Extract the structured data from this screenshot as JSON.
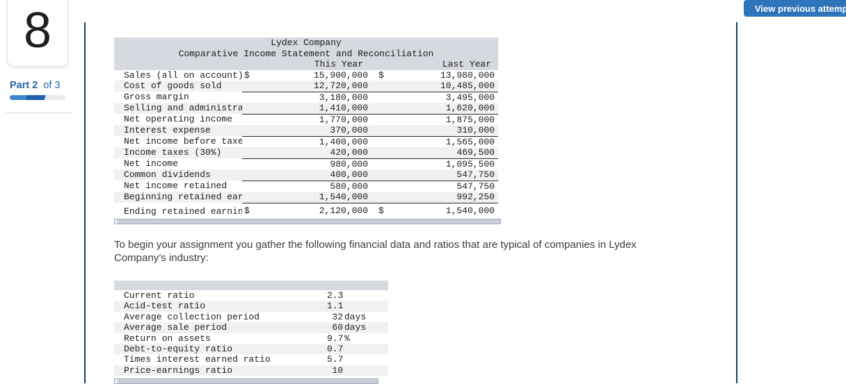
{
  "question": {
    "number": "8"
  },
  "part": {
    "bold": "Part 2",
    "rest": "of 3",
    "progress_percent": 66
  },
  "toolbar": {
    "view_previous_label": "View previous attempt"
  },
  "colors": {
    "accent_blue": "#2e74ba",
    "panel_border": "#1c3b63",
    "table_header_bg": "#d6d9e0",
    "row_stripe_bg": "#f1f1f2",
    "progress_done": "#3e86c9",
    "progress_current": "#1d5fa9"
  },
  "income_statement": {
    "title": "Lydex Company",
    "subtitle": "Comparative Income Statement and Reconciliation",
    "columns": [
      "This Year",
      "Last Year"
    ],
    "rows": [
      {
        "label": "Sales (all on account)",
        "prefix": "$",
        "this_year": "15,900,000",
        "last_year": "13,980,000",
        "underline": "none"
      },
      {
        "label": "Cost of goods sold",
        "prefix": "",
        "this_year": "12,720,000",
        "last_year": "10,485,000",
        "underline": "single"
      },
      {
        "label": "Gross margin",
        "prefix": "",
        "this_year": "3,180,000",
        "last_year": "3,495,000",
        "underline": "none"
      },
      {
        "label": "Selling and administrative expenses",
        "prefix": "",
        "this_year": "1,410,000",
        "last_year": "1,620,000",
        "underline": "single"
      },
      {
        "label": "Net operating income",
        "prefix": "",
        "this_year": "1,770,000",
        "last_year": "1,875,000",
        "underline": "none"
      },
      {
        "label": "Interest expense",
        "prefix": "",
        "this_year": "370,000",
        "last_year": "310,000",
        "underline": "single"
      },
      {
        "label": "Net income before taxes",
        "prefix": "",
        "this_year": "1,400,000",
        "last_year": "1,565,000",
        "underline": "none"
      },
      {
        "label": "Income taxes (30%)",
        "prefix": "",
        "this_year": "420,000",
        "last_year": "469,500",
        "underline": "single"
      },
      {
        "label": "Net income",
        "prefix": "",
        "this_year": "980,000",
        "last_year": "1,095,500",
        "underline": "none"
      },
      {
        "label": "Common dividends",
        "prefix": "",
        "this_year": "400,000",
        "last_year": "547,750",
        "underline": "single"
      },
      {
        "label": "Net income retained",
        "prefix": "",
        "this_year": "580,000",
        "last_year": "547,750",
        "underline": "none"
      },
      {
        "label": "Beginning retained earnings",
        "prefix": "",
        "this_year": "1,540,000",
        "last_year": "992,250",
        "underline": "single"
      },
      {
        "label": "Ending retained earnings",
        "prefix": "$",
        "this_year": "2,120,000",
        "last_year": "1,540,000",
        "underline": "double"
      }
    ]
  },
  "intro_text": "To begin your assignment you gather the following financial data and ratios that are typical of companies in Lydex Company’s industry:",
  "ratios_table": {
    "rows": [
      {
        "label": "Current ratio",
        "value": "2.3",
        "unit": ""
      },
      {
        "label": "Acid-test ratio",
        "value": "1.1",
        "unit": ""
      },
      {
        "label": "Average collection period",
        "value": "32",
        "unit": "days"
      },
      {
        "label": "Average sale period",
        "value": "60",
        "unit": "days"
      },
      {
        "label": "Return on assets",
        "value": "9.7",
        "unit": "%"
      },
      {
        "label": "Debt-to-equity ratio",
        "value": "0.7",
        "unit": ""
      },
      {
        "label": "Times interest earned ratio",
        "value": "5.7",
        "unit": ""
      },
      {
        "label": "Price-earnings ratio",
        "value": "10",
        "unit": ""
      }
    ]
  }
}
